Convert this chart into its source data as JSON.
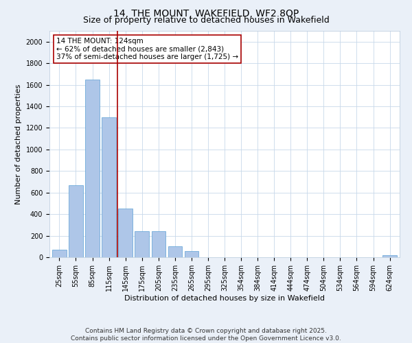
{
  "title": "14, THE MOUNT, WAKEFIELD, WF2 8QP",
  "subtitle": "Size of property relative to detached houses in Wakefield",
  "xlabel": "Distribution of detached houses by size in Wakefield",
  "ylabel": "Number of detached properties",
  "categories": [
    "25sqm",
    "55sqm",
    "85sqm",
    "115sqm",
    "145sqm",
    "175sqm",
    "205sqm",
    "235sqm",
    "265sqm",
    "295sqm",
    "325sqm",
    "354sqm",
    "384sqm",
    "414sqm",
    "444sqm",
    "474sqm",
    "504sqm",
    "534sqm",
    "564sqm",
    "594sqm",
    "624sqm"
  ],
  "values": [
    70,
    670,
    1650,
    1300,
    450,
    240,
    240,
    100,
    60,
    0,
    0,
    0,
    0,
    0,
    0,
    0,
    0,
    0,
    0,
    0,
    20
  ],
  "bar_color": "#aec6e8",
  "bar_edgecolor": "#5a9fd4",
  "vline_x": 3.5,
  "vline_color": "#aa0000",
  "annotation_text": "14 THE MOUNT: 124sqm\n← 62% of detached houses are smaller (2,843)\n37% of semi-detached houses are larger (1,725) →",
  "annotation_box_color": "#ffffff",
  "annotation_box_edgecolor": "#aa0000",
  "ylim": [
    0,
    2100
  ],
  "yticks": [
    0,
    200,
    400,
    600,
    800,
    1000,
    1200,
    1400,
    1600,
    1800,
    2000
  ],
  "footnote": "Contains HM Land Registry data © Crown copyright and database right 2025.\nContains public sector information licensed under the Open Government Licence v3.0.",
  "bg_color": "#eaf0f8",
  "plot_bg_color": "#ffffff",
  "title_fontsize": 10,
  "subtitle_fontsize": 9,
  "label_fontsize": 8,
  "tick_fontsize": 7,
  "annotation_fontsize": 7.5,
  "footnote_fontsize": 6.5
}
